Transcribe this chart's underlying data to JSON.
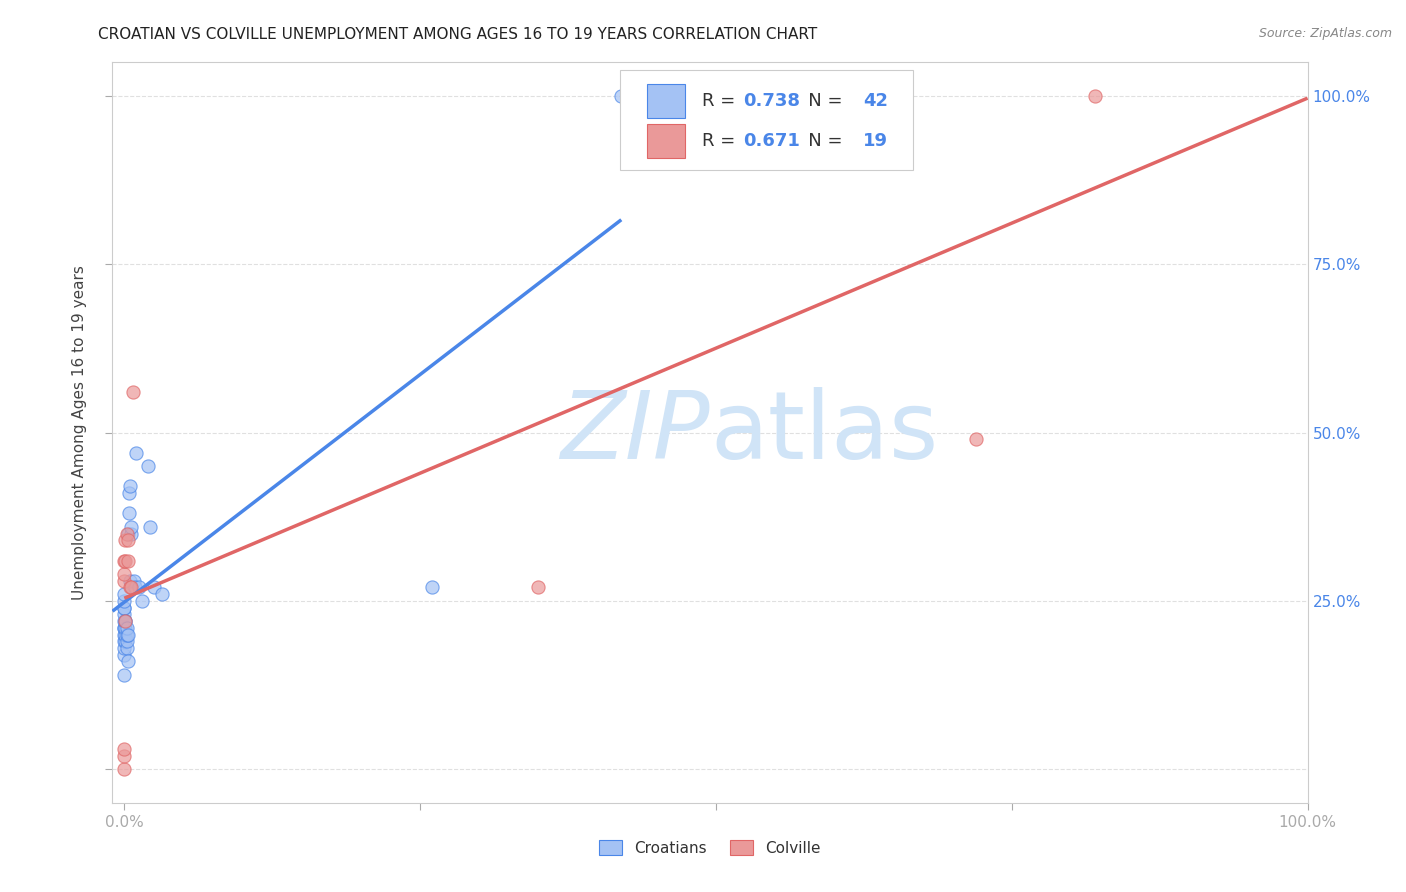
{
  "title": "CROATIAN VS COLVILLE UNEMPLOYMENT AMONG AGES 16 TO 19 YEARS CORRELATION CHART",
  "source": "Source: ZipAtlas.com",
  "ylabel": "Unemployment Among Ages 16 to 19 years",
  "croatians_R": 0.738,
  "croatians_N": 42,
  "colville_R": 0.671,
  "colville_N": 19,
  "blue_color": "#a4c2f4",
  "blue_edge_color": "#4a86e8",
  "pink_color": "#ea9999",
  "pink_edge_color": "#e06666",
  "blue_line_color": "#4a86e8",
  "pink_line_color": "#e06666",
  "watermark_color": "#d0e4f7",
  "tick_label_color": "#4a86e8",
  "grid_color": "#e0e0e0",
  "croatians_x": [
    0.0,
    0.0,
    0.0,
    0.0,
    0.0,
    0.0,
    0.0,
    0.0,
    0.0,
    0.0,
    0.0,
    0.0,
    0.0,
    0.001,
    0.001,
    0.001,
    0.001,
    0.001,
    0.002,
    0.002,
    0.002,
    0.002,
    0.003,
    0.003,
    0.003,
    0.004,
    0.004,
    0.005,
    0.005,
    0.006,
    0.006,
    0.008,
    0.009,
    0.01,
    0.012,
    0.015,
    0.02,
    0.022,
    0.025,
    0.032,
    0.26,
    0.42
  ],
  "croatians_y": [
    0.14,
    0.17,
    0.18,
    0.19,
    0.2,
    0.21,
    0.21,
    0.22,
    0.23,
    0.24,
    0.24,
    0.25,
    0.26,
    0.19,
    0.2,
    0.21,
    0.22,
    0.22,
    0.18,
    0.19,
    0.2,
    0.21,
    0.16,
    0.2,
    0.35,
    0.38,
    0.41,
    0.28,
    0.42,
    0.35,
    0.36,
    0.28,
    0.27,
    0.47,
    0.27,
    0.25,
    0.45,
    0.36,
    0.27,
    0.26,
    0.27,
    1.0
  ],
  "colville_x": [
    0.0,
    0.0,
    0.0,
    0.0,
    0.0,
    0.0,
    0.001,
    0.001,
    0.001,
    0.002,
    0.003,
    0.003,
    0.005,
    0.006,
    0.007,
    0.35,
    0.55,
    0.72,
    0.82
  ],
  "colville_y": [
    0.0,
    0.02,
    0.03,
    0.28,
    0.29,
    0.31,
    0.22,
    0.31,
    0.34,
    0.35,
    0.31,
    0.34,
    0.27,
    0.27,
    0.56,
    0.27,
    1.0,
    0.49,
    1.0
  ],
  "xlim": [
    -0.01,
    1.0
  ],
  "ylim": [
    -0.05,
    1.05
  ]
}
